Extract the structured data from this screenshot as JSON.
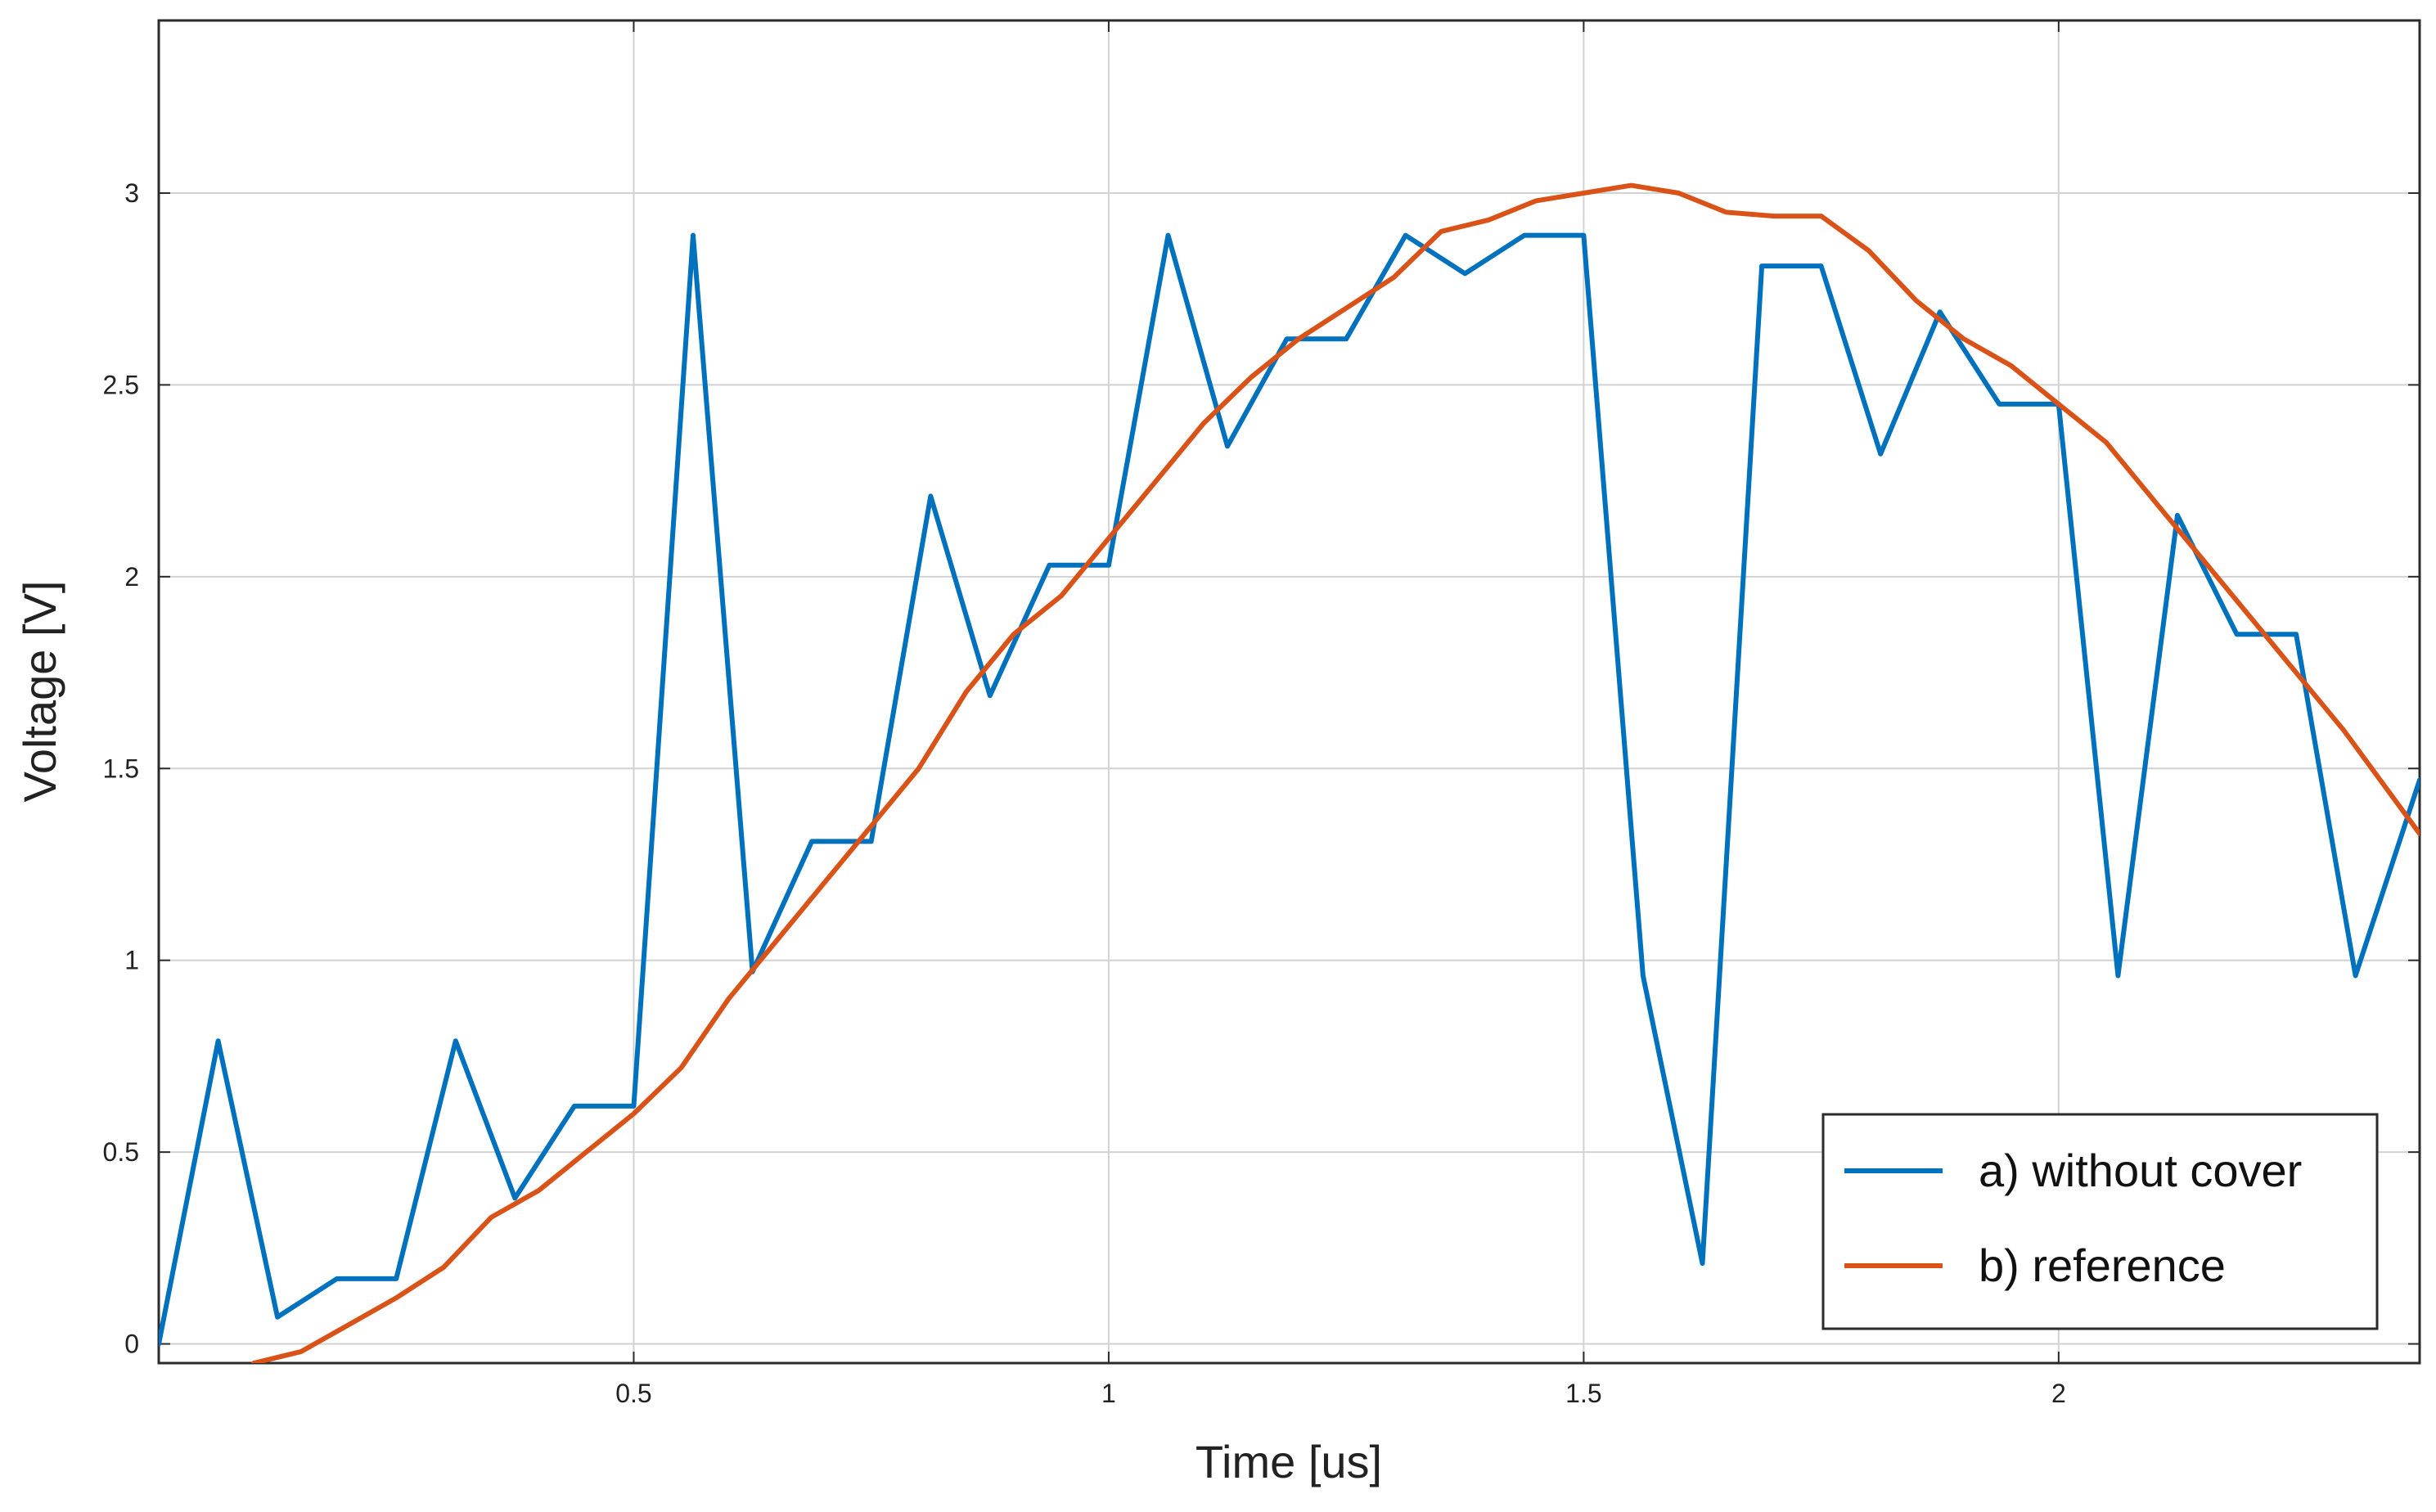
{
  "chart_data": {
    "type": "line",
    "title": "",
    "xlabel": "Time [us]",
    "ylabel": "Voltage [V]",
    "xlim": [
      0,
      2.38
    ],
    "ylim": [
      -0.05,
      3.45
    ],
    "grid": true,
    "legend_position": "bottom-right",
    "x_ticks": [
      0.5,
      1,
      1.5,
      2
    ],
    "x_tick_labels": [
      "0.5",
      "1",
      "1.5",
      "2"
    ],
    "y_ticks": [
      0,
      0.5,
      1,
      1.5,
      2,
      2.5,
      3
    ],
    "y_tick_labels": [
      "0",
      "0.5",
      "1",
      "1.5",
      "2",
      "2.5",
      "3"
    ],
    "series": [
      {
        "name": "a) without cover",
        "color": "#0072BD",
        "x": [
          0,
          0.0625,
          0.125,
          0.1875,
          0.25,
          0.3125,
          0.375,
          0.4375,
          0.5,
          0.5625,
          0.625,
          0.6875,
          0.75,
          0.8125,
          0.875,
          0.9375,
          1.0,
          1.0625,
          1.125,
          1.1875,
          1.25,
          1.3125,
          1.375,
          1.4375,
          1.5,
          1.5625,
          1.625,
          1.6875,
          1.75,
          1.8125,
          1.875,
          1.9375,
          2.0,
          2.0625,
          2.125,
          2.1875,
          2.25,
          2.3125,
          2.38
        ],
        "y": [
          0.0,
          0.79,
          0.07,
          0.17,
          0.17,
          0.79,
          0.38,
          0.62,
          0.62,
          2.89,
          0.97,
          1.31,
          1.31,
          2.21,
          1.69,
          2.03,
          2.03,
          2.89,
          2.34,
          2.62,
          2.62,
          2.89,
          2.79,
          2.89,
          2.89,
          0.96,
          0.21,
          2.81,
          2.81,
          2.32,
          2.69,
          2.45,
          2.45,
          0.96,
          2.16,
          1.85,
          1.85,
          0.96,
          1.47
        ]
      },
      {
        "name": "b) reference",
        "color": "#D95319",
        "x": [
          0.1,
          0.15,
          0.2,
          0.25,
          0.3,
          0.35,
          0.4,
          0.45,
          0.5,
          0.55,
          0.6,
          0.65,
          0.7,
          0.75,
          0.8,
          0.85,
          0.9,
          0.95,
          1.0,
          1.05,
          1.1,
          1.15,
          1.2,
          1.25,
          1.3,
          1.35,
          1.4,
          1.45,
          1.5,
          1.55,
          1.6,
          1.65,
          1.7,
          1.75,
          1.8,
          1.85,
          1.9,
          1.95,
          2.0,
          2.05,
          2.1,
          2.15,
          2.2,
          2.25,
          2.3,
          2.38
        ],
        "y": [
          -0.05,
          -0.02,
          0.05,
          0.12,
          0.2,
          0.33,
          0.4,
          0.5,
          0.6,
          0.72,
          0.9,
          1.05,
          1.2,
          1.35,
          1.5,
          1.7,
          1.85,
          1.95,
          2.1,
          2.25,
          2.4,
          2.52,
          2.62,
          2.7,
          2.78,
          2.9,
          2.93,
          2.98,
          3.0,
          3.02,
          3.0,
          2.95,
          2.94,
          2.94,
          2.85,
          2.72,
          2.62,
          2.55,
          2.45,
          2.35,
          2.2,
          2.05,
          1.9,
          1.75,
          1.6,
          1.33
        ]
      }
    ]
  }
}
